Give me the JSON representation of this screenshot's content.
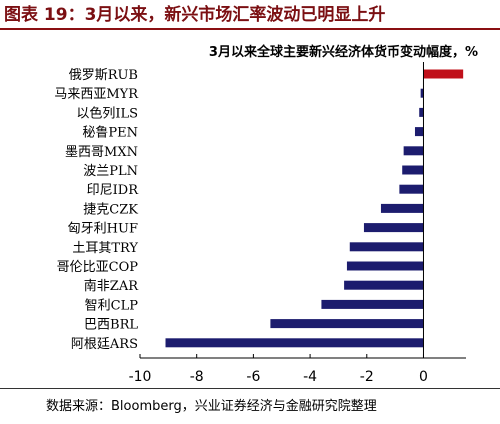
{
  "header": {
    "title": "图表 19：3月以来，新兴市场汇率波动已明显上升"
  },
  "footer": {
    "source": "数据来源：Bloomberg，兴业证券经济与金融研究院整理"
  },
  "colors": {
    "title": "#7b0f12",
    "bar_negative": "#1c1c6e",
    "bar_positive": "#c0101a"
  },
  "chart_data": {
    "type": "bar",
    "orientation": "horizontal",
    "title": "3月以来全球主要新兴经济体货币变动幅度，%",
    "categories": [
      "俄罗斯RUB",
      "马来西亚MYR",
      "以色列ILS",
      "秘鲁PEN",
      "墨西哥MXN",
      "波兰PLN",
      "印尼IDR",
      "捷克CZK",
      "匈牙利HUF",
      "土耳其TRY",
      "哥伦比亚COP",
      "南非ZAR",
      "智利CLP",
      "巴西BRL",
      "阿根廷ARS"
    ],
    "values": [
      1.4,
      -0.1,
      -0.15,
      -0.3,
      -0.7,
      -0.75,
      -0.85,
      -1.5,
      -2.1,
      -2.6,
      -2.7,
      -2.8,
      -3.6,
      -5.4,
      -9.1
    ],
    "xlim": [
      -10,
      1.5
    ],
    "xticks": [
      -10,
      -8,
      -6,
      -4,
      -2,
      0
    ],
    "grid": false,
    "legend": "none"
  }
}
